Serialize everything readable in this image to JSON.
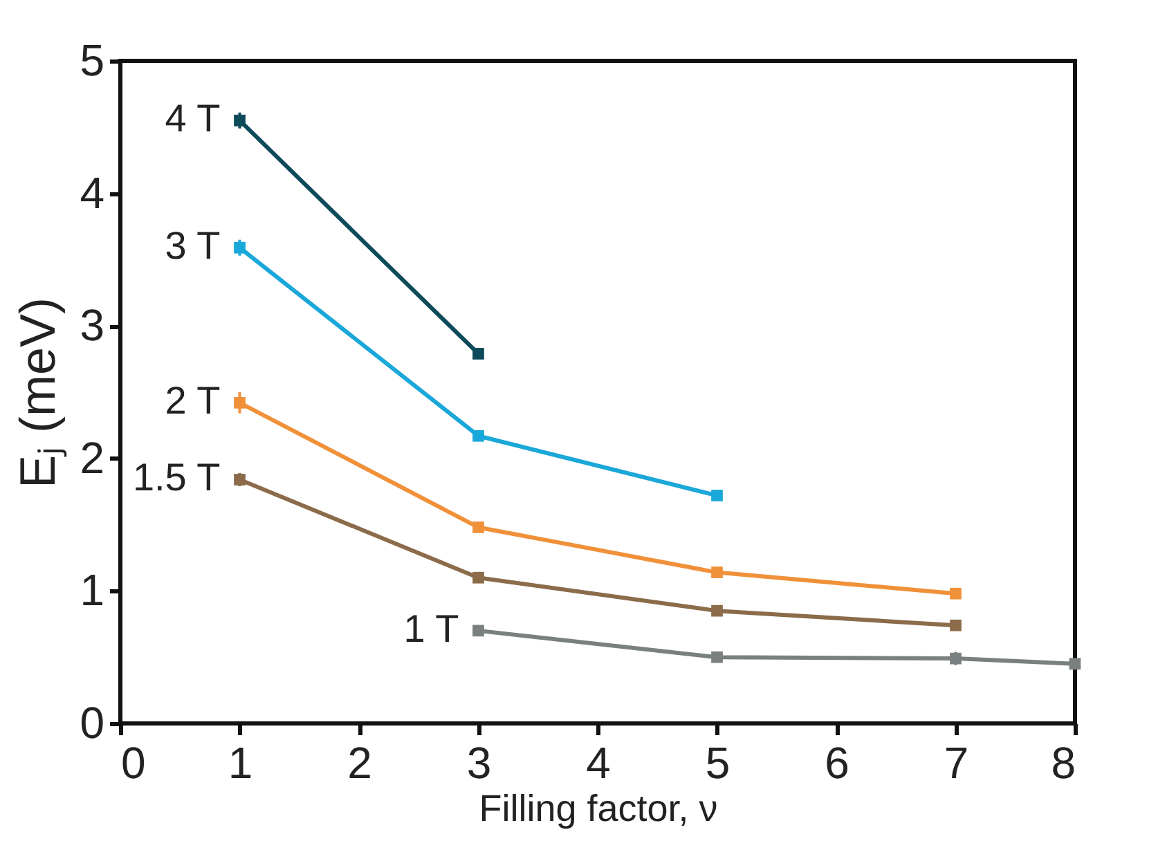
{
  "chart_data": {
    "type": "line",
    "xlabel": "Filling factor, ν",
    "ylabel": "Eⱼ (meV)",
    "xlim": [
      0,
      8
    ],
    "xticks": [
      0,
      1,
      2,
      3,
      4,
      5,
      6,
      7,
      8
    ],
    "ylim": [
      0,
      5
    ],
    "yticks": [
      0,
      1,
      2,
      3,
      4,
      5
    ],
    "grid": false,
    "legend": false,
    "marker": "square",
    "line_style": "solid",
    "series": [
      {
        "name": "4 T",
        "color": "#0d4a5a",
        "x": [
          1,
          3
        ],
        "values": [
          4.55,
          2.79
        ],
        "errors": [
          0.06,
          0.03
        ]
      },
      {
        "name": "3 T",
        "color": "#1aa7d9",
        "x": [
          1,
          3,
          5
        ],
        "values": [
          3.59,
          2.17,
          1.72
        ],
        "errors": [
          0.06,
          0.03,
          0.04
        ]
      },
      {
        "name": "2 T",
        "color": "#f0913a",
        "x": [
          1,
          3,
          5,
          7
        ],
        "values": [
          2.42,
          1.48,
          1.14,
          0.98
        ],
        "errors": [
          0.08,
          0.03,
          0.04,
          0.03
        ]
      },
      {
        "name": "1.5 T",
        "color": "#8b6b4a",
        "x": [
          1,
          3,
          5,
          7
        ],
        "values": [
          1.84,
          1.1,
          0.85,
          0.74
        ],
        "errors": [
          0.05,
          0.02,
          0.02,
          0.02
        ]
      },
      {
        "name": "1 T",
        "color": "#7a8080",
        "x": [
          3,
          5,
          7,
          8
        ],
        "values": [
          0.7,
          0.5,
          0.49,
          0.45
        ],
        "errors": [
          0.04,
          0.02,
          0.05,
          null
        ]
      }
    ]
  }
}
